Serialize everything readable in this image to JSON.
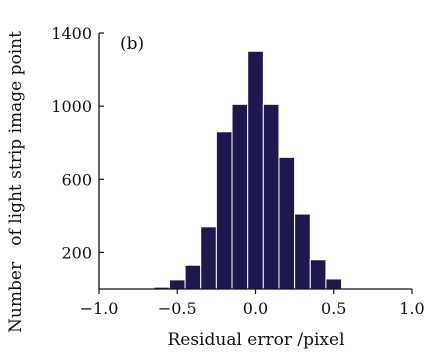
{
  "chart_data": {
    "type": "bar",
    "panel_label": "(b)",
    "xlabel": "Residual error /pixel",
    "ylabel": "Number   of light strip image point",
    "xlim": [
      -1.0,
      1.0
    ],
    "ylim": [
      0,
      1400
    ],
    "xticks": [
      -1.0,
      -0.5,
      0.0,
      0.5,
      1.0
    ],
    "xtick_labels": [
      "−1.0",
      "−0.5",
      "0.0",
      "0.5",
      "1.0"
    ],
    "yticks": [
      200,
      600,
      1000,
      1400
    ],
    "ytick_labels": [
      "200",
      "600",
      "1000",
      "1400"
    ],
    "bin_width": 0.1,
    "bins": [
      {
        "center": -0.6,
        "value": 10
      },
      {
        "center": -0.5,
        "value": 50
      },
      {
        "center": -0.4,
        "value": 130
      },
      {
        "center": -0.3,
        "value": 340
      },
      {
        "center": -0.2,
        "value": 860
      },
      {
        "center": -0.1,
        "value": 1010
      },
      {
        "center": 0.0,
        "value": 1300
      },
      {
        "center": 0.1,
        "value": 1010
      },
      {
        "center": 0.2,
        "value": 720
      },
      {
        "center": 0.3,
        "value": 410
      },
      {
        "center": 0.4,
        "value": 160
      },
      {
        "center": 0.5,
        "value": 55
      }
    ],
    "grid": false,
    "bar_color": "#1d1850"
  }
}
